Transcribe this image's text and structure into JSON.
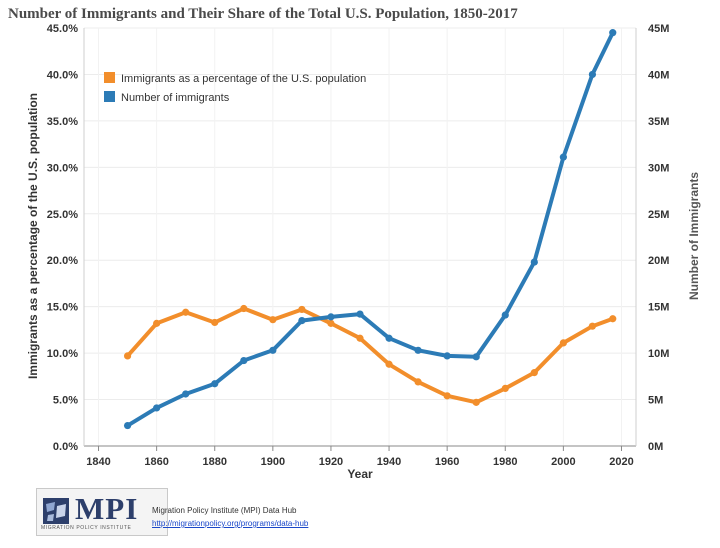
{
  "chart_data": {
    "type": "line",
    "title": "Number of Immigrants and Their Share of the Total U.S. Population, 1850-2017",
    "xlabel": "Year",
    "ylabel_left": "Immigrants as a percentage of the U.S. population",
    "ylabel_right": "Number of Immigrants",
    "xlim": [
      1835,
      2025
    ],
    "x_ticks": [
      1840,
      1860,
      1880,
      1900,
      1920,
      1940,
      1960,
      1980,
      2000,
      2020
    ],
    "ylim_left": [
      0,
      45
    ],
    "y_ticks_left": [
      "0.0%",
      "5.0%",
      "10.0%",
      "15.0%",
      "20.0%",
      "25.0%",
      "30.0%",
      "35.0%",
      "40.0%",
      "45.0%"
    ],
    "ylim_right": [
      0,
      45
    ],
    "y_ticks_right": [
      "0M",
      "5M",
      "10M",
      "15M",
      "20M",
      "25M",
      "30M",
      "35M",
      "40M",
      "45M"
    ],
    "grid": true,
    "legend_position": "top-left",
    "series": [
      {
        "name": "Immigrants as a percentage of the U.S. population",
        "color": "#f28e2b",
        "axis": "left",
        "x": [
          1850,
          1860,
          1870,
          1880,
          1890,
          1900,
          1910,
          1920,
          1930,
          1940,
          1950,
          1960,
          1970,
          1980,
          1990,
          2000,
          2010,
          2017
        ],
        "values": [
          9.7,
          13.2,
          14.4,
          13.3,
          14.8,
          13.6,
          14.7,
          13.2,
          11.6,
          8.8,
          6.9,
          5.4,
          4.7,
          6.2,
          7.9,
          11.1,
          12.9,
          13.7
        ]
      },
      {
        "name": "Number of immigrants",
        "color": "#2c7bb6",
        "axis": "right",
        "x": [
          1850,
          1860,
          1870,
          1880,
          1890,
          1900,
          1910,
          1920,
          1930,
          1940,
          1950,
          1960,
          1970,
          1980,
          1990,
          2000,
          2010,
          2017
        ],
        "values": [
          2.2,
          4.1,
          5.6,
          6.7,
          9.2,
          10.3,
          13.5,
          13.9,
          14.2,
          11.6,
          10.3,
          9.7,
          9.6,
          14.1,
          19.8,
          31.1,
          40.0,
          44.5
        ]
      }
    ]
  },
  "footer": {
    "logo_text": "MPI",
    "logo_subtext": "MIGRATION POLICY INSTITUTE",
    "source_name": "Migration Policy Institute (MPI) Data Hub",
    "source_link": "http://migrationpolicy.org/programs/data-hub"
  }
}
